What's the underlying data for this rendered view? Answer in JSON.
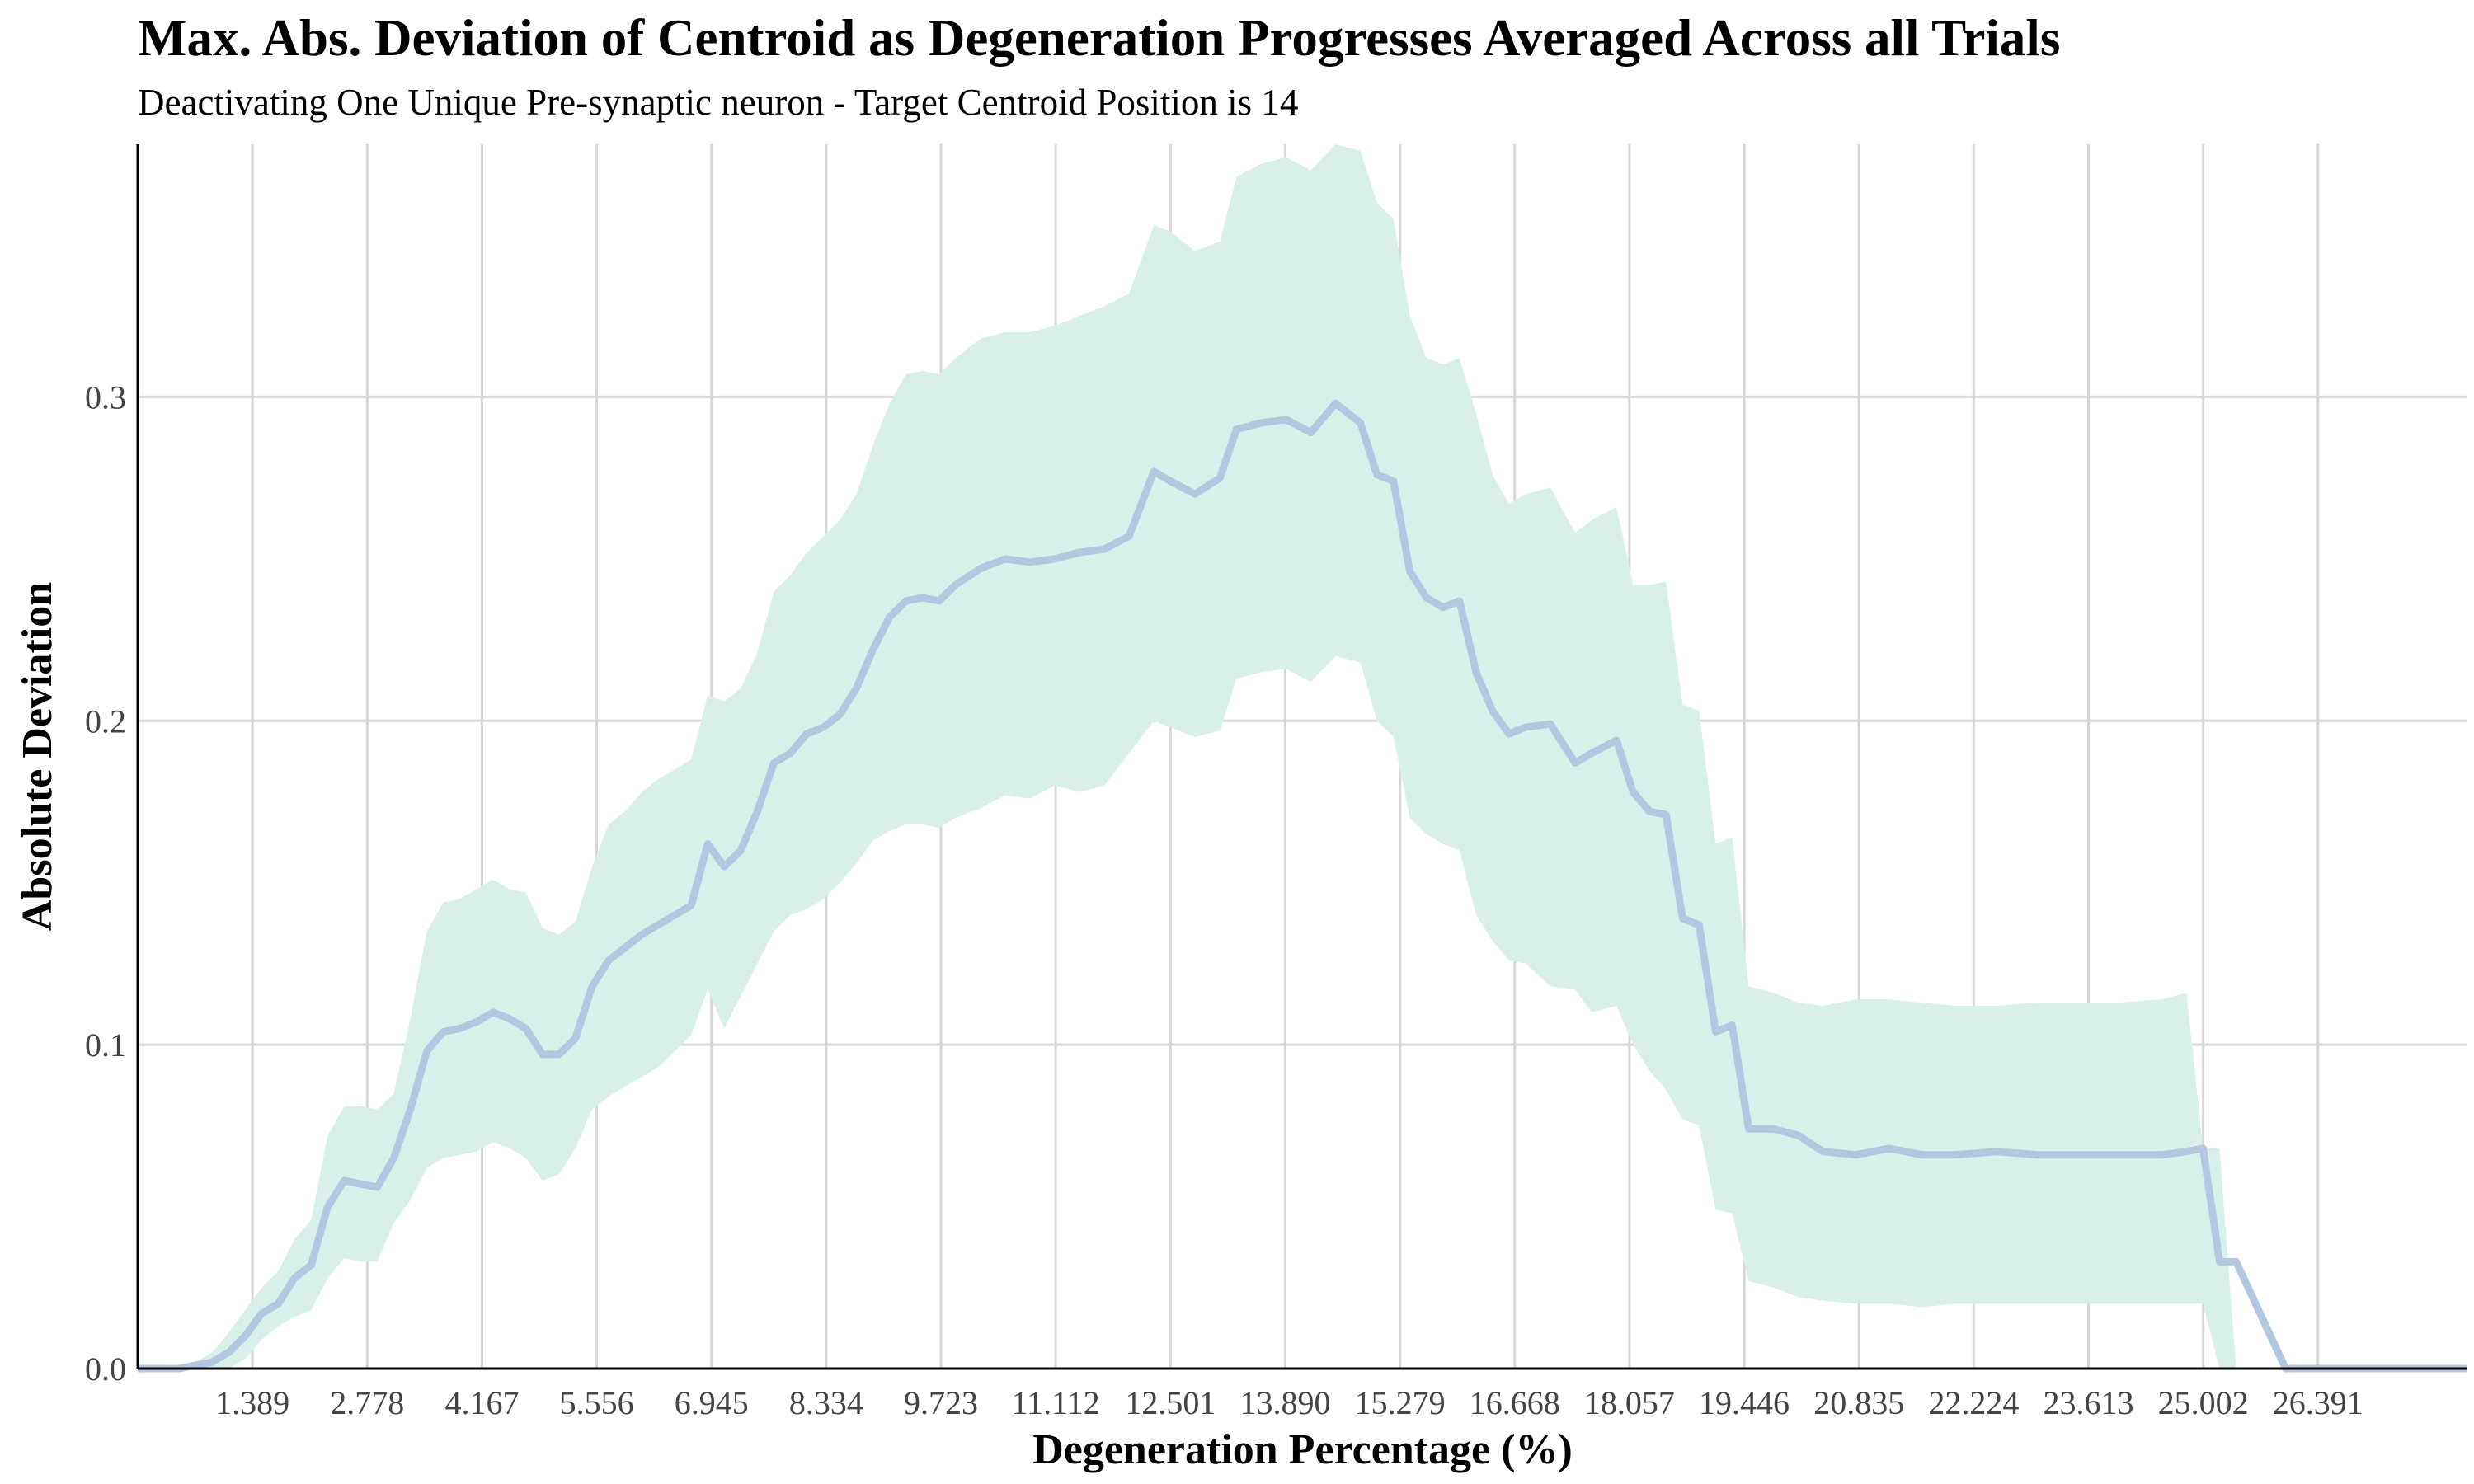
{
  "chart_data": {
    "type": "line",
    "title": "Max. Abs. Deviation of Centroid as Degeneration Progresses Averaged Across all Trials",
    "subtitle": "Deactivating One Unique Pre-synaptic neuron - Target Centroid Position is 14",
    "xlabel": "Degeneration Percentage (%)",
    "ylabel": "Absolute Deviation",
    "xlim": [
      0,
      28.2
    ],
    "ylim": [
      0,
      0.378
    ],
    "x_ticks": [
      1.389,
      2.778,
      4.167,
      5.556,
      6.945,
      8.334,
      9.723,
      11.112,
      12.501,
      13.89,
      15.279,
      16.668,
      18.057,
      19.446,
      20.835,
      22.224,
      23.613,
      25.002,
      26.391
    ],
    "x_tick_labels": [
      "1.389",
      "2.778",
      "4.167",
      "5.556",
      "6.945",
      "8.334",
      "9.723",
      "11.112",
      "12.501",
      "13.890",
      "15.279",
      "16.668",
      "18.057",
      "19.446",
      "20.835",
      "22.224",
      "23.613",
      "25.002",
      "26.391"
    ],
    "y_ticks": [
      0.0,
      0.1,
      0.2,
      0.3
    ],
    "y_tick_labels": [
      "0.0",
      "0.1",
      "0.2",
      "0.3"
    ],
    "grid": true,
    "line_color": "#b3c7e0",
    "band_color": "#d9f0ea",
    "series": [
      {
        "x": [
          0,
          0.5,
          0.7,
          0.9,
          1.1,
          1.3,
          1.5,
          1.7,
          1.9,
          2.1,
          2.3,
          2.5,
          2.7,
          2.9,
          3.1,
          3.3,
          3.5,
          3.7,
          3.9,
          4.1,
          4.3,
          4.5,
          4.7,
          4.9,
          5.1,
          5.3,
          5.5,
          5.7,
          5.9,
          6.1,
          6.3,
          6.5,
          6.7,
          6.9,
          7.1,
          7.3,
          7.5,
          7.7,
          7.9,
          8.1,
          8.3,
          8.5,
          8.7,
          8.9,
          9.1,
          9.3,
          9.5,
          9.7,
          9.9,
          10.2,
          10.5,
          10.8,
          11.1,
          11.4,
          11.7,
          12.0,
          12.3,
          12.5,
          12.8,
          13.1,
          13.3,
          13.6,
          13.9,
          14.2,
          14.5,
          14.8,
          15.0,
          15.2,
          15.4,
          15.6,
          15.8,
          16.0,
          16.2,
          16.4,
          16.6,
          16.8,
          17.1,
          17.4,
          17.6,
          17.9,
          18.1,
          18.3,
          18.5,
          18.7,
          18.9,
          19.1,
          19.3,
          19.5,
          19.8,
          20.1,
          20.4,
          20.8,
          21.2,
          21.6,
          22.0,
          22.5,
          23.0,
          23.5,
          24.0,
          24.5,
          24.8,
          25.0,
          25.2,
          25.4,
          26.0,
          27.0,
          28.2
        ],
        "y": [
          0.0,
          0.0,
          0.001,
          0.002,
          0.005,
          0.01,
          0.017,
          0.02,
          0.028,
          0.032,
          0.05,
          0.058,
          0.057,
          0.056,
          0.065,
          0.08,
          0.098,
          0.104,
          0.105,
          0.107,
          0.11,
          0.108,
          0.105,
          0.097,
          0.097,
          0.102,
          0.118,
          0.126,
          0.13,
          0.134,
          0.137,
          0.14,
          0.143,
          0.162,
          0.155,
          0.16,
          0.172,
          0.187,
          0.19,
          0.196,
          0.198,
          0.202,
          0.21,
          0.222,
          0.232,
          0.237,
          0.238,
          0.237,
          0.242,
          0.247,
          0.25,
          0.249,
          0.25,
          0.252,
          0.253,
          0.257,
          0.277,
          0.274,
          0.27,
          0.275,
          0.29,
          0.292,
          0.293,
          0.289,
          0.298,
          0.292,
          0.276,
          0.274,
          0.246,
          0.238,
          0.235,
          0.237,
          0.215,
          0.203,
          0.196,
          0.198,
          0.199,
          0.187,
          0.19,
          0.194,
          0.178,
          0.172,
          0.171,
          0.139,
          0.137,
          0.104,
          0.106,
          0.074,
          0.074,
          0.072,
          0.067,
          0.066,
          0.068,
          0.066,
          0.066,
          0.067,
          0.066,
          0.066,
          0.066,
          0.066,
          0.067,
          0.068,
          0.033,
          0.033,
          0.0,
          0.0,
          0.0
        ],
        "lower": [
          0.0,
          0.0,
          0.0,
          0.0,
          0.0,
          0.003,
          0.009,
          0.013,
          0.016,
          0.018,
          0.028,
          0.034,
          0.033,
          0.033,
          0.045,
          0.052,
          0.062,
          0.065,
          0.066,
          0.067,
          0.07,
          0.068,
          0.065,
          0.058,
          0.06,
          0.068,
          0.08,
          0.084,
          0.087,
          0.09,
          0.093,
          0.098,
          0.103,
          0.117,
          0.105,
          0.115,
          0.125,
          0.135,
          0.14,
          0.142,
          0.145,
          0.15,
          0.156,
          0.163,
          0.166,
          0.168,
          0.168,
          0.167,
          0.17,
          0.173,
          0.177,
          0.176,
          0.18,
          0.178,
          0.18,
          0.19,
          0.2,
          0.198,
          0.195,
          0.197,
          0.213,
          0.215,
          0.216,
          0.212,
          0.22,
          0.218,
          0.2,
          0.195,
          0.17,
          0.165,
          0.162,
          0.16,
          0.14,
          0.132,
          0.126,
          0.125,
          0.118,
          0.117,
          0.11,
          0.112,
          0.1,
          0.092,
          0.086,
          0.077,
          0.075,
          0.049,
          0.048,
          0.027,
          0.025,
          0.022,
          0.021,
          0.02,
          0.02,
          0.019,
          0.02,
          0.02,
          0.02,
          0.02,
          0.02,
          0.02,
          0.02,
          0.02,
          0.0,
          0.0,
          0.0,
          0.0,
          0.0
        ],
        "upper": [
          0.0,
          0.0,
          0.002,
          0.005,
          0.011,
          0.018,
          0.025,
          0.03,
          0.04,
          0.046,
          0.072,
          0.081,
          0.081,
          0.08,
          0.085,
          0.108,
          0.135,
          0.144,
          0.145,
          0.148,
          0.151,
          0.148,
          0.147,
          0.136,
          0.134,
          0.138,
          0.155,
          0.168,
          0.172,
          0.178,
          0.182,
          0.185,
          0.188,
          0.208,
          0.206,
          0.21,
          0.221,
          0.24,
          0.245,
          0.252,
          0.257,
          0.262,
          0.27,
          0.285,
          0.298,
          0.307,
          0.308,
          0.307,
          0.312,
          0.318,
          0.32,
          0.32,
          0.322,
          0.325,
          0.328,
          0.332,
          0.353,
          0.351,
          0.345,
          0.348,
          0.368,
          0.372,
          0.374,
          0.37,
          0.378,
          0.376,
          0.36,
          0.355,
          0.325,
          0.312,
          0.31,
          0.312,
          0.295,
          0.276,
          0.267,
          0.27,
          0.272,
          0.258,
          0.262,
          0.266,
          0.242,
          0.242,
          0.243,
          0.205,
          0.203,
          0.162,
          0.164,
          0.118,
          0.116,
          0.113,
          0.112,
          0.114,
          0.114,
          0.113,
          0.112,
          0.112,
          0.113,
          0.113,
          0.113,
          0.114,
          0.116,
          0.068,
          0.068,
          0.0,
          0.0,
          0.0,
          0.0
        ]
      }
    ]
  }
}
